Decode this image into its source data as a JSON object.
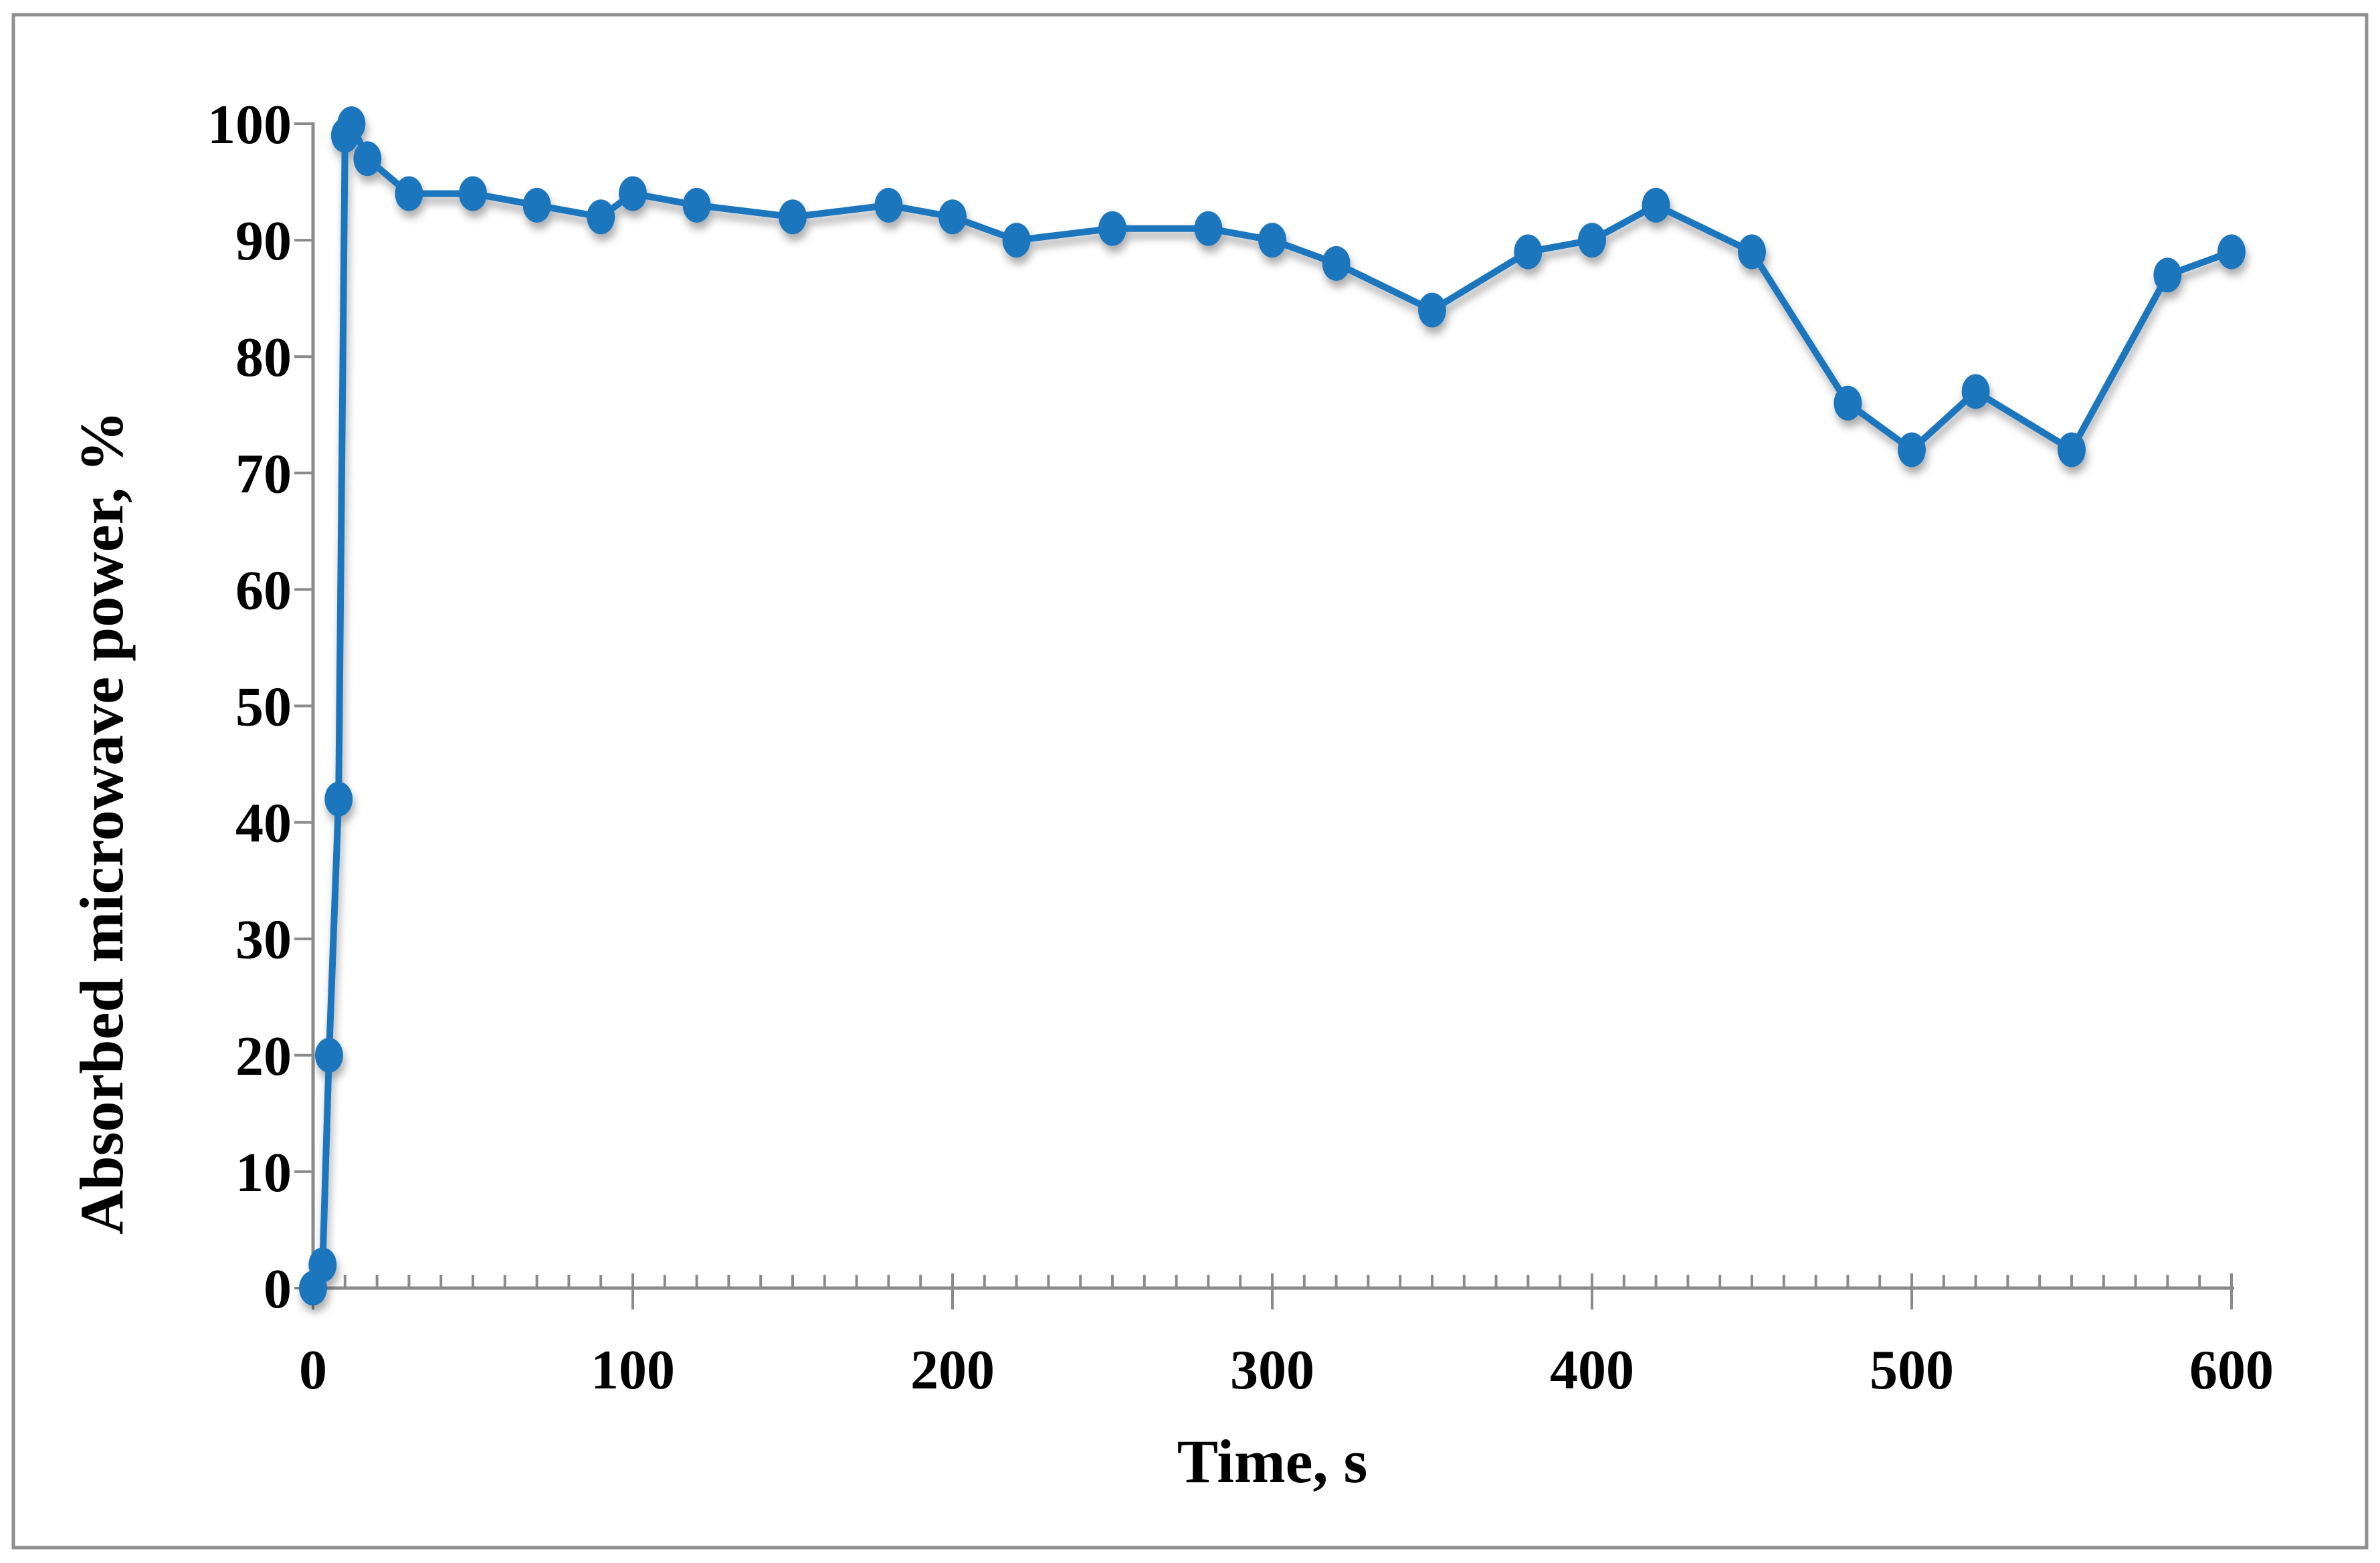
{
  "figure": {
    "background": "#ffffff",
    "border_color": "#8f8f8f"
  },
  "chart_data": {
    "type": "line",
    "title": "",
    "xlabel": "Time, s",
    "ylabel": "Absorbed microwave power, %",
    "grid": false,
    "legend": false,
    "x_axis": {
      "min": 0,
      "max": 600,
      "major_tick_interval": 100,
      "minor_tick_interval": 10,
      "major_tick_labels": [
        "0",
        "100",
        "200",
        "300",
        "400",
        "500",
        "600"
      ]
    },
    "y_axis": {
      "min": 0,
      "max": 100,
      "major_tick_interval": 10,
      "major_tick_labels": [
        "0",
        "10",
        "20",
        "30",
        "40",
        "50",
        "60",
        "70",
        "80",
        "90",
        "100"
      ]
    },
    "series": [
      {
        "name": "Absorbed microwave power",
        "color": "#1c76bd",
        "marker": "circle",
        "points": [
          [
            0,
            0
          ],
          [
            3,
            2
          ],
          [
            5,
            20
          ],
          [
            8,
            42
          ],
          [
            10,
            99
          ],
          [
            12,
            100
          ],
          [
            17,
            97
          ],
          [
            30,
            94
          ],
          [
            50,
            94
          ],
          [
            70,
            93
          ],
          [
            90,
            92
          ],
          [
            100,
            94
          ],
          [
            120,
            93
          ],
          [
            150,
            92
          ],
          [
            180,
            93
          ],
          [
            200,
            92
          ],
          [
            220,
            90
          ],
          [
            250,
            91
          ],
          [
            280,
            91
          ],
          [
            300,
            90
          ],
          [
            320,
            88
          ],
          [
            350,
            84
          ],
          [
            380,
            89
          ],
          [
            400,
            90
          ],
          [
            420,
            93
          ],
          [
            450,
            89
          ],
          [
            480,
            76
          ],
          [
            500,
            72
          ],
          [
            520,
            77
          ],
          [
            550,
            72
          ],
          [
            580,
            87
          ],
          [
            600,
            89
          ]
        ]
      }
    ]
  }
}
